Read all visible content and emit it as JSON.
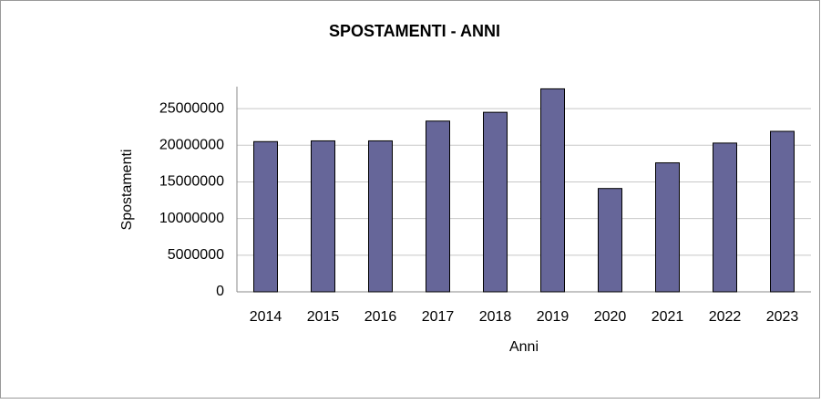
{
  "chart_data": {
    "type": "bar",
    "title": "SPOSTAMENTI - ANNI",
    "x_label": "Anni",
    "y_label": "Spostamenti",
    "categories": [
      "2014",
      "2015",
      "2016",
      "2017",
      "2018",
      "2019",
      "2020",
      "2021",
      "2022",
      "2023"
    ],
    "values": [
      20500000,
      20600000,
      20600000,
      23300000,
      24500000,
      27700000,
      14100000,
      17600000,
      20300000,
      21900000
    ],
    "color": "#666699",
    "ylim": [
      0,
      28000000
    ],
    "yticks": [
      0,
      5000000,
      10000000,
      15000000,
      20000000,
      25000000
    ],
    "grid": true
  }
}
